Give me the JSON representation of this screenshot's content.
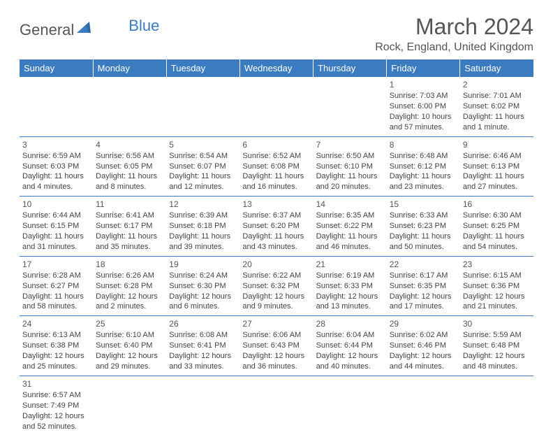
{
  "logo": {
    "general": "General",
    "blue": "Blue"
  },
  "title": "March 2024",
  "location": "Rock, England, United Kingdom",
  "colors": {
    "header_bg": "#3b7bbf",
    "header_fg": "#ffffff",
    "text": "#444444",
    "border": "#3b7bbf"
  },
  "weekdays": [
    "Sunday",
    "Monday",
    "Tuesday",
    "Wednesday",
    "Thursday",
    "Friday",
    "Saturday"
  ],
  "weeks": [
    [
      null,
      null,
      null,
      null,
      null,
      {
        "n": "1",
        "sr": "Sunrise: 7:03 AM",
        "ss": "Sunset: 6:00 PM",
        "d1": "Daylight: 10 hours",
        "d2": "and 57 minutes."
      },
      {
        "n": "2",
        "sr": "Sunrise: 7:01 AM",
        "ss": "Sunset: 6:02 PM",
        "d1": "Daylight: 11 hours",
        "d2": "and 1 minute."
      }
    ],
    [
      {
        "n": "3",
        "sr": "Sunrise: 6:59 AM",
        "ss": "Sunset: 6:03 PM",
        "d1": "Daylight: 11 hours",
        "d2": "and 4 minutes."
      },
      {
        "n": "4",
        "sr": "Sunrise: 6:56 AM",
        "ss": "Sunset: 6:05 PM",
        "d1": "Daylight: 11 hours",
        "d2": "and 8 minutes."
      },
      {
        "n": "5",
        "sr": "Sunrise: 6:54 AM",
        "ss": "Sunset: 6:07 PM",
        "d1": "Daylight: 11 hours",
        "d2": "and 12 minutes."
      },
      {
        "n": "6",
        "sr": "Sunrise: 6:52 AM",
        "ss": "Sunset: 6:08 PM",
        "d1": "Daylight: 11 hours",
        "d2": "and 16 minutes."
      },
      {
        "n": "7",
        "sr": "Sunrise: 6:50 AM",
        "ss": "Sunset: 6:10 PM",
        "d1": "Daylight: 11 hours",
        "d2": "and 20 minutes."
      },
      {
        "n": "8",
        "sr": "Sunrise: 6:48 AM",
        "ss": "Sunset: 6:12 PM",
        "d1": "Daylight: 11 hours",
        "d2": "and 23 minutes."
      },
      {
        "n": "9",
        "sr": "Sunrise: 6:46 AM",
        "ss": "Sunset: 6:13 PM",
        "d1": "Daylight: 11 hours",
        "d2": "and 27 minutes."
      }
    ],
    [
      {
        "n": "10",
        "sr": "Sunrise: 6:44 AM",
        "ss": "Sunset: 6:15 PM",
        "d1": "Daylight: 11 hours",
        "d2": "and 31 minutes."
      },
      {
        "n": "11",
        "sr": "Sunrise: 6:41 AM",
        "ss": "Sunset: 6:17 PM",
        "d1": "Daylight: 11 hours",
        "d2": "and 35 minutes."
      },
      {
        "n": "12",
        "sr": "Sunrise: 6:39 AM",
        "ss": "Sunset: 6:18 PM",
        "d1": "Daylight: 11 hours",
        "d2": "and 39 minutes."
      },
      {
        "n": "13",
        "sr": "Sunrise: 6:37 AM",
        "ss": "Sunset: 6:20 PM",
        "d1": "Daylight: 11 hours",
        "d2": "and 43 minutes."
      },
      {
        "n": "14",
        "sr": "Sunrise: 6:35 AM",
        "ss": "Sunset: 6:22 PM",
        "d1": "Daylight: 11 hours",
        "d2": "and 46 minutes."
      },
      {
        "n": "15",
        "sr": "Sunrise: 6:33 AM",
        "ss": "Sunset: 6:23 PM",
        "d1": "Daylight: 11 hours",
        "d2": "and 50 minutes."
      },
      {
        "n": "16",
        "sr": "Sunrise: 6:30 AM",
        "ss": "Sunset: 6:25 PM",
        "d1": "Daylight: 11 hours",
        "d2": "and 54 minutes."
      }
    ],
    [
      {
        "n": "17",
        "sr": "Sunrise: 6:28 AM",
        "ss": "Sunset: 6:27 PM",
        "d1": "Daylight: 11 hours",
        "d2": "and 58 minutes."
      },
      {
        "n": "18",
        "sr": "Sunrise: 6:26 AM",
        "ss": "Sunset: 6:28 PM",
        "d1": "Daylight: 12 hours",
        "d2": "and 2 minutes."
      },
      {
        "n": "19",
        "sr": "Sunrise: 6:24 AM",
        "ss": "Sunset: 6:30 PM",
        "d1": "Daylight: 12 hours",
        "d2": "and 6 minutes."
      },
      {
        "n": "20",
        "sr": "Sunrise: 6:22 AM",
        "ss": "Sunset: 6:32 PM",
        "d1": "Daylight: 12 hours",
        "d2": "and 9 minutes."
      },
      {
        "n": "21",
        "sr": "Sunrise: 6:19 AM",
        "ss": "Sunset: 6:33 PM",
        "d1": "Daylight: 12 hours",
        "d2": "and 13 minutes."
      },
      {
        "n": "22",
        "sr": "Sunrise: 6:17 AM",
        "ss": "Sunset: 6:35 PM",
        "d1": "Daylight: 12 hours",
        "d2": "and 17 minutes."
      },
      {
        "n": "23",
        "sr": "Sunrise: 6:15 AM",
        "ss": "Sunset: 6:36 PM",
        "d1": "Daylight: 12 hours",
        "d2": "and 21 minutes."
      }
    ],
    [
      {
        "n": "24",
        "sr": "Sunrise: 6:13 AM",
        "ss": "Sunset: 6:38 PM",
        "d1": "Daylight: 12 hours",
        "d2": "and 25 minutes."
      },
      {
        "n": "25",
        "sr": "Sunrise: 6:10 AM",
        "ss": "Sunset: 6:40 PM",
        "d1": "Daylight: 12 hours",
        "d2": "and 29 minutes."
      },
      {
        "n": "26",
        "sr": "Sunrise: 6:08 AM",
        "ss": "Sunset: 6:41 PM",
        "d1": "Daylight: 12 hours",
        "d2": "and 33 minutes."
      },
      {
        "n": "27",
        "sr": "Sunrise: 6:06 AM",
        "ss": "Sunset: 6:43 PM",
        "d1": "Daylight: 12 hours",
        "d2": "and 36 minutes."
      },
      {
        "n": "28",
        "sr": "Sunrise: 6:04 AM",
        "ss": "Sunset: 6:44 PM",
        "d1": "Daylight: 12 hours",
        "d2": "and 40 minutes."
      },
      {
        "n": "29",
        "sr": "Sunrise: 6:02 AM",
        "ss": "Sunset: 6:46 PM",
        "d1": "Daylight: 12 hours",
        "d2": "and 44 minutes."
      },
      {
        "n": "30",
        "sr": "Sunrise: 5:59 AM",
        "ss": "Sunset: 6:48 PM",
        "d1": "Daylight: 12 hours",
        "d2": "and 48 minutes."
      }
    ],
    [
      {
        "n": "31",
        "sr": "Sunrise: 6:57 AM",
        "ss": "Sunset: 7:49 PM",
        "d1": "Daylight: 12 hours",
        "d2": "and 52 minutes."
      },
      null,
      null,
      null,
      null,
      null,
      null
    ]
  ]
}
